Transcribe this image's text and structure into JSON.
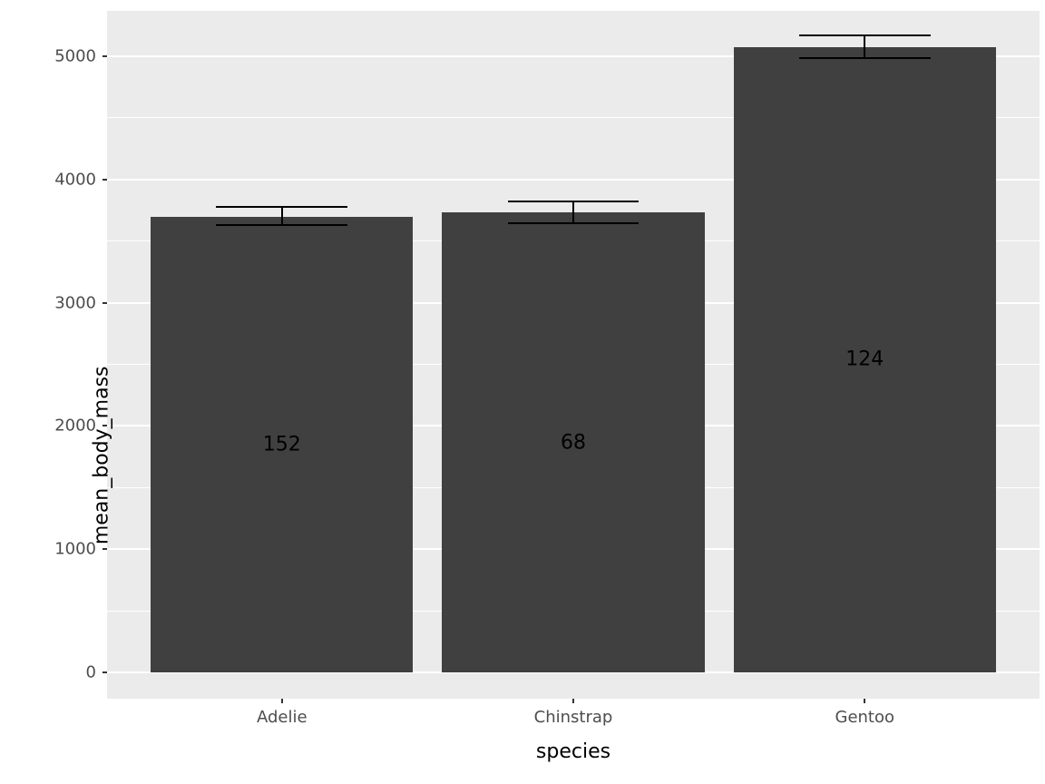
{
  "chart_data": {
    "type": "bar",
    "title": "",
    "xlabel": "species",
    "ylabel": "mean_body_mass",
    "categories": [
      "Adelie",
      "Chinstrap",
      "Gentoo"
    ],
    "series": [
      {
        "name": "mean_body_mass",
        "values": [
          3700,
          3733,
          5076
        ]
      }
    ],
    "error_bars": {
      "low": [
        3627,
        3645,
        4985
      ],
      "high": [
        3775,
        3825,
        5168
      ]
    },
    "bar_labels": [
      "152",
      "68",
      "124"
    ],
    "y_ticks": [
      0,
      1000,
      2000,
      3000,
      4000,
      5000
    ],
    "y_minor_ticks": [
      500,
      1500,
      2500,
      3500,
      4500
    ],
    "ylim": [
      -213,
      5368
    ],
    "grid": true,
    "legend": false,
    "colors": {
      "background": "#FFFFFF",
      "panel_bg": "#EBEBEB",
      "bar_fill": "#404040",
      "grid_major": "#FFFFFF",
      "grid_minor": "#FFFFFF",
      "axis_text": "#4D4D4D",
      "tick_mark": "#333333",
      "label_text": "#000000",
      "errorbar": "#000000"
    }
  }
}
